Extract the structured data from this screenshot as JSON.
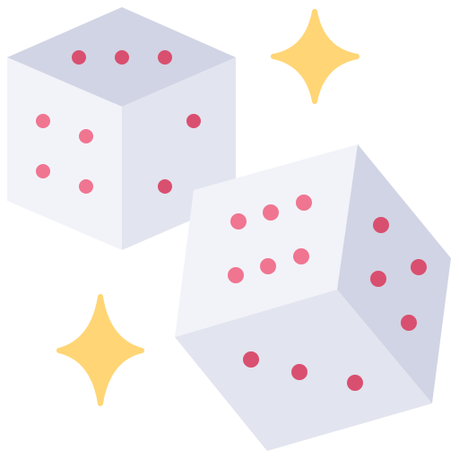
{
  "illustration": {
    "subject": "dice-with-sparkles",
    "icons": [
      "die-icon",
      "die-icon",
      "sparkle-icon",
      "sparkle-icon"
    ]
  },
  "colors": {
    "face_light": "#f2f3f9",
    "face_mid": "#e2e4ef",
    "face_dark": "#d1d4e4",
    "pip_light": "#f07590",
    "pip_dark": "#d94f6f",
    "sparkle": "#ffd575"
  },
  "dice": [
    {
      "name": "die-back-left",
      "top_face_pips": 3,
      "left_face_pips": 4,
      "right_face_pips": 2
    },
    {
      "name": "die-front-right",
      "front_face_pips": 6,
      "right_face_pips": 4,
      "bottom_face_pips": 3
    }
  ]
}
